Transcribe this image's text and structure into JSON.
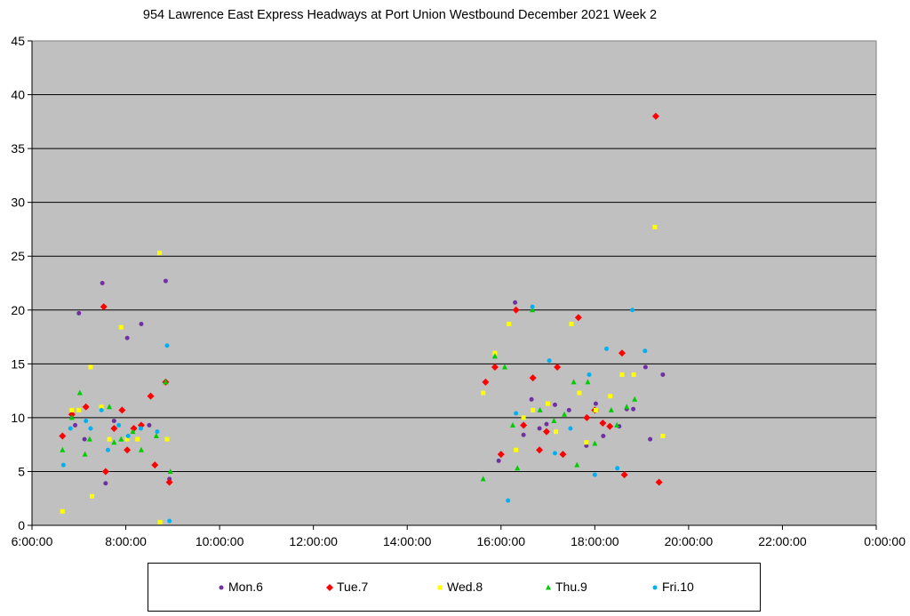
{
  "chart_data": {
    "type": "scatter",
    "title": "954 Lawrence East Express Headways at Port Union Westbound December 2021  Week 2",
    "xlabel": "",
    "ylabel": "",
    "xlim": [
      6,
      24
    ],
    "ylim": [
      0,
      45
    ],
    "x_ticks": [
      "6:00:00",
      "8:00:00",
      "10:00:00",
      "12:00:00",
      "14:00:00",
      "16:00:00",
      "18:00:00",
      "20:00:00",
      "22:00:00",
      "0:00:00"
    ],
    "y_ticks": [
      "0",
      "5",
      "10",
      "15",
      "20",
      "25",
      "30",
      "35",
      "40",
      "45"
    ],
    "grid": "horizontal",
    "legend_position": "bottom",
    "x_unit": "hours after midnight",
    "series": [
      {
        "name": "Mon.6",
        "color": "#7030A0",
        "marker": "circle",
        "points": [
          [
            6.92,
            9.3
          ],
          [
            7.0,
            19.7
          ],
          [
            7.12,
            8.0
          ],
          [
            7.5,
            22.5
          ],
          [
            7.57,
            3.9
          ],
          [
            7.75,
            9.7
          ],
          [
            8.03,
            17.4
          ],
          [
            8.17,
            9.0
          ],
          [
            8.33,
            18.7
          ],
          [
            8.5,
            9.3
          ],
          [
            8.85,
            22.7
          ],
          [
            8.93,
            4.3
          ],
          [
            15.95,
            6.0
          ],
          [
            16.3,
            20.7
          ],
          [
            16.48,
            8.4
          ],
          [
            16.65,
            11.7
          ],
          [
            16.82,
            9.0
          ],
          [
            16.97,
            9.4
          ],
          [
            17.15,
            11.2
          ],
          [
            17.45,
            10.7
          ],
          [
            17.82,
            7.4
          ],
          [
            18.02,
            11.3
          ],
          [
            18.18,
            8.3
          ],
          [
            18.52,
            9.2
          ],
          [
            18.68,
            10.8
          ],
          [
            18.82,
            10.8
          ],
          [
            19.08,
            14.7
          ],
          [
            19.18,
            8.0
          ],
          [
            19.45,
            14.0
          ]
        ]
      },
      {
        "name": "Tue.7",
        "color": "#FF0000",
        "marker": "diamond",
        "points": [
          [
            6.65,
            8.3
          ],
          [
            6.85,
            10.3
          ],
          [
            7.15,
            11.0
          ],
          [
            7.53,
            20.3
          ],
          [
            7.57,
            5.0
          ],
          [
            7.75,
            9.0
          ],
          [
            7.92,
            10.7
          ],
          [
            8.03,
            7.0
          ],
          [
            8.17,
            9.0
          ],
          [
            8.33,
            9.3
          ],
          [
            8.53,
            12.0
          ],
          [
            8.62,
            5.6
          ],
          [
            8.85,
            13.3
          ],
          [
            8.93,
            4.0
          ],
          [
            15.67,
            13.3
          ],
          [
            15.87,
            14.7
          ],
          [
            16.0,
            6.6
          ],
          [
            16.32,
            20.0
          ],
          [
            16.48,
            9.3
          ],
          [
            16.68,
            13.7
          ],
          [
            16.82,
            7.0
          ],
          [
            16.97,
            8.7
          ],
          [
            17.2,
            14.7
          ],
          [
            17.32,
            6.6
          ],
          [
            17.65,
            19.3
          ],
          [
            17.83,
            10.0
          ],
          [
            18.0,
            10.7
          ],
          [
            18.17,
            9.5
          ],
          [
            18.32,
            9.2
          ],
          [
            18.58,
            16.0
          ],
          [
            18.63,
            4.7
          ],
          [
            19.3,
            38.0
          ],
          [
            19.37,
            4.0
          ]
        ]
      },
      {
        "name": "Wed.8",
        "color": "#FFFF00",
        "marker": "square",
        "points": [
          [
            6.65,
            1.3
          ],
          [
            6.85,
            10.7
          ],
          [
            7.0,
            10.7
          ],
          [
            7.25,
            14.7
          ],
          [
            7.28,
            2.7
          ],
          [
            7.48,
            11.0
          ],
          [
            7.65,
            8.0
          ],
          [
            7.9,
            18.4
          ],
          [
            8.03,
            8.0
          ],
          [
            8.25,
            8.0
          ],
          [
            8.72,
            25.3
          ],
          [
            8.73,
            0.3
          ],
          [
            8.88,
            8.0
          ],
          [
            15.62,
            12.3
          ],
          [
            15.87,
            16.0
          ],
          [
            16.17,
            18.7
          ],
          [
            16.32,
            7.0
          ],
          [
            16.48,
            10.0
          ],
          [
            16.68,
            10.7
          ],
          [
            17.0,
            11.3
          ],
          [
            17.17,
            8.7
          ],
          [
            17.5,
            18.7
          ],
          [
            17.67,
            12.3
          ],
          [
            17.82,
            7.7
          ],
          [
            18.02,
            10.7
          ],
          [
            18.33,
            12.0
          ],
          [
            18.58,
            14.0
          ],
          [
            18.83,
            14.0
          ],
          [
            19.28,
            27.7
          ],
          [
            19.45,
            8.3
          ]
        ]
      },
      {
        "name": "Thu.9",
        "color": "#00CC00",
        "marker": "triangle",
        "points": [
          [
            6.65,
            7.0
          ],
          [
            6.85,
            10.0
          ],
          [
            7.02,
            12.3
          ],
          [
            7.13,
            6.6
          ],
          [
            7.23,
            8.0
          ],
          [
            7.65,
            11.0
          ],
          [
            7.75,
            7.7
          ],
          [
            7.9,
            8.0
          ],
          [
            8.15,
            8.7
          ],
          [
            8.33,
            7.0
          ],
          [
            8.65,
            8.3
          ],
          [
            8.85,
            13.3
          ],
          [
            8.95,
            5.0
          ],
          [
            15.62,
            4.3
          ],
          [
            15.87,
            15.7
          ],
          [
            16.08,
            14.7
          ],
          [
            16.25,
            9.3
          ],
          [
            16.35,
            5.3
          ],
          [
            16.67,
            20.0
          ],
          [
            16.83,
            10.7
          ],
          [
            17.13,
            9.7
          ],
          [
            17.35,
            10.3
          ],
          [
            17.55,
            13.3
          ],
          [
            17.62,
            5.6
          ],
          [
            17.85,
            13.3
          ],
          [
            18.0,
            7.6
          ],
          [
            18.35,
            10.7
          ],
          [
            18.47,
            9.3
          ],
          [
            18.68,
            11.0
          ],
          [
            18.85,
            11.7
          ]
        ]
      },
      {
        "name": "Fri.10",
        "color": "#00B0F0",
        "marker": "circle",
        "points": [
          [
            6.67,
            5.6
          ],
          [
            6.82,
            9.0
          ],
          [
            7.15,
            9.7
          ],
          [
            7.25,
            9.0
          ],
          [
            7.48,
            10.7
          ],
          [
            7.62,
            7.0
          ],
          [
            7.85,
            9.3
          ],
          [
            8.05,
            8.3
          ],
          [
            8.32,
            9.0
          ],
          [
            8.67,
            8.7
          ],
          [
            8.88,
            16.7
          ],
          [
            8.93,
            0.4
          ],
          [
            16.15,
            2.3
          ],
          [
            16.32,
            10.4
          ],
          [
            16.67,
            20.3
          ],
          [
            17.03,
            15.3
          ],
          [
            17.15,
            6.7
          ],
          [
            17.48,
            9.0
          ],
          [
            17.88,
            14.0
          ],
          [
            18.0,
            4.7
          ],
          [
            18.25,
            16.4
          ],
          [
            18.48,
            5.3
          ],
          [
            18.8,
            20.0
          ],
          [
            19.07,
            16.2
          ]
        ]
      }
    ]
  }
}
